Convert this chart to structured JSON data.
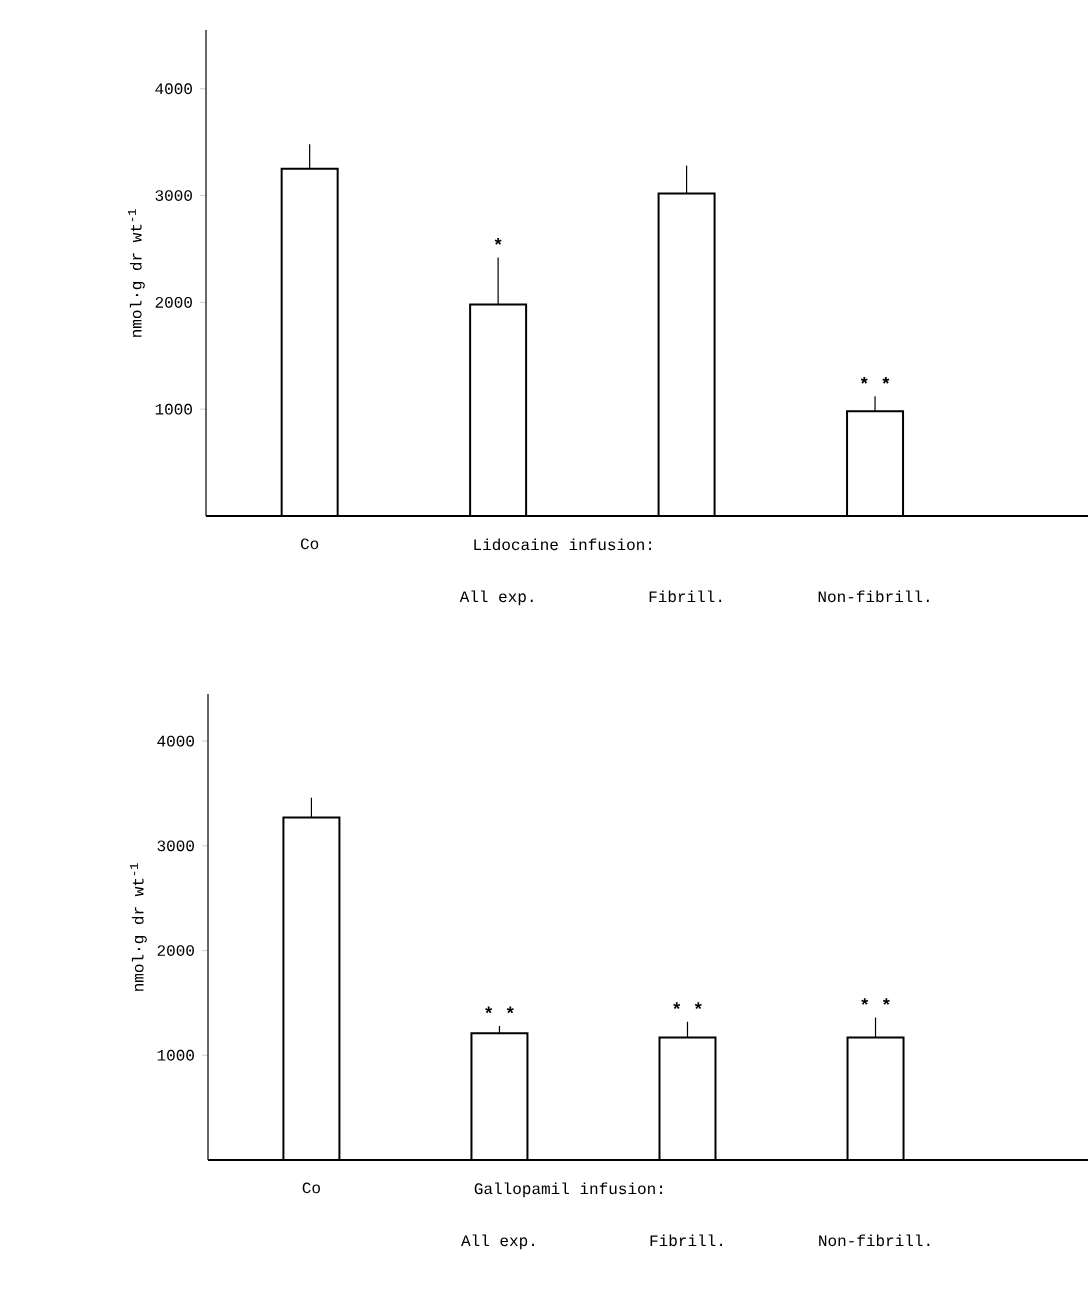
{
  "chart_data": [
    {
      "type": "bar",
      "ylabel": "nmol·g dr wt$^{-1}$",
      "categories": [
        "Co",
        "All exp.",
        "Fibrill.",
        "Non-fibrill."
      ],
      "values": [
        3250,
        1980,
        3020,
        980
      ],
      "errors": [
        [
          3250,
          3480
        ],
        [
          1980,
          2420
        ],
        [
          3020,
          3280
        ],
        [
          980,
          1120
        ]
      ],
      "color": "#ffffff",
      "ylim": [
        0,
        4550
      ],
      "yticks": [
        1000,
        2000,
        3000,
        4000
      ],
      "annotations": [
        "Lidocaine infusion:",
        {
          "text": "*",
          "x": "All exp.",
          "y": 2420
        },
        {
          "text": "* *",
          "x": "Non-fibrill.",
          "y": 1120
        }
      ]
    },
    {
      "type": "bar",
      "ylabel": "nmol·g dr wt$^{-1}$",
      "categories": [
        "Co",
        "All exp.",
        "Fibrill.",
        "Non-fibrill."
      ],
      "values": [
        3270,
        1210,
        1170,
        1170
      ],
      "errors": [
        [
          3270,
          3460
        ],
        [
          1210,
          1280
        ],
        [
          1170,
          1320
        ],
        [
          1170,
          1360
        ]
      ],
      "color": "#ffffff",
      "ylim": [
        0,
        4450
      ],
      "yticks": [
        1000,
        2000,
        3000,
        4000
      ],
      "annotations": [
        "Gallopamil infusion:",
        {
          "text": "* *",
          "x": "All exp.",
          "y": 1280
        },
        {
          "text": "* *",
          "x": "Fibrill.",
          "y": 1320
        },
        {
          "text": "* *",
          "x": "Non-fibrill.",
          "y": 1360
        }
      ]
    }
  ]
}
